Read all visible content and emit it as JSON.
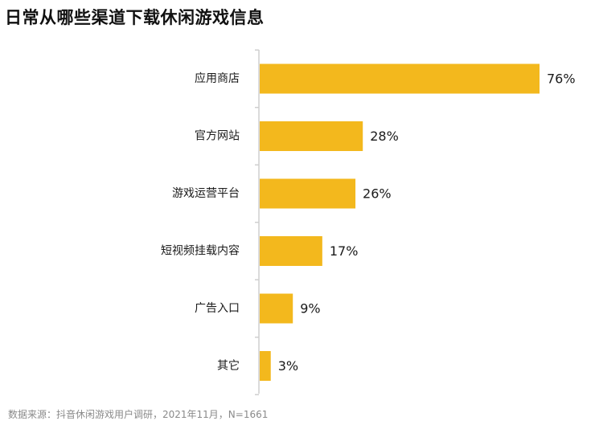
{
  "chart_data": {
    "type": "bar",
    "orientation": "horizontal",
    "title": "日常从哪些渠道下载休闲游戏信息",
    "categories": [
      "应用商店",
      "官方网站",
      "游戏运营平台",
      "短视频挂载内容",
      "广告入口",
      "其它"
    ],
    "values": [
      76,
      28,
      26,
      17,
      9,
      3
    ],
    "value_labels": [
      "76%",
      "28%",
      "26%",
      "17%",
      "9%",
      "3%"
    ],
    "unit": "%",
    "xlim": [
      0,
      76
    ],
    "grid": false,
    "legend": "none",
    "bar_color": "#F3B81D",
    "source": "数据来源：抖音休闲游戏用户调研，2021年11月，N=1661"
  }
}
